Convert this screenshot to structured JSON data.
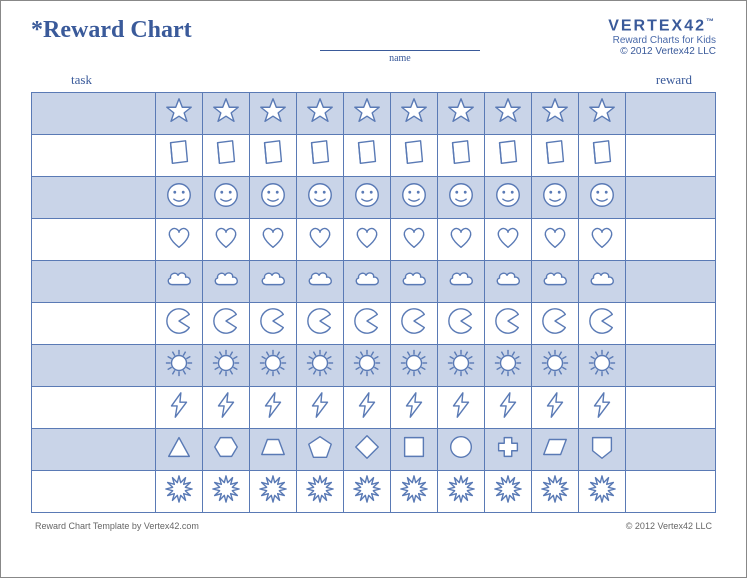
{
  "title": "*Reward Chart",
  "name_label": "name",
  "brand": {
    "logo": "VERTEX42",
    "tm": "™",
    "tagline": "Reward Charts for Kids",
    "copyright_header": "© 2012 Vertex42 LLC"
  },
  "columns": {
    "left": "task",
    "right": "reward"
  },
  "grid": {
    "rows": 10,
    "icon_cols": 10,
    "row_icons": [
      "star",
      "book",
      "smiley",
      "heart",
      "cloud",
      "pacman",
      "sun",
      "bolt",
      "shapes",
      "burst"
    ],
    "shapes_sequence": [
      "triangle",
      "hexagon",
      "trapezoid",
      "pentagon",
      "diamond",
      "square",
      "circle",
      "plus",
      "parallelogram",
      "penta2"
    ],
    "stroke": "#5a7ab5",
    "fill": "#ffffff",
    "shaded_bg": "#c9d4e8",
    "border": "#5a7ab5"
  },
  "footer": {
    "left": "Reward Chart Template by Vertex42.com",
    "right": "© 2012 Vertex42 LLC"
  }
}
